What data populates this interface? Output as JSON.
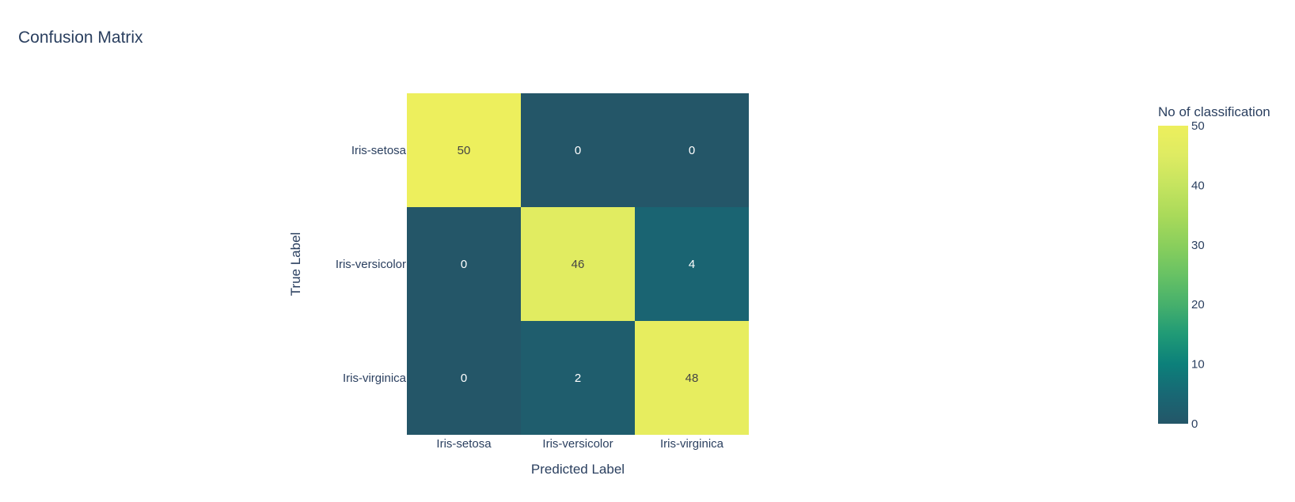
{
  "chart_data": {
    "type": "heatmap",
    "title": "Confusion Matrix",
    "xlabel": "Predicted Label",
    "ylabel": "True Label",
    "x_categories": [
      "Iris-setosa",
      "Iris-versicolor",
      "Iris-virginica"
    ],
    "y_categories": [
      "Iris-setosa",
      "Iris-versicolor",
      "Iris-virginica"
    ],
    "values": [
      [
        50,
        0,
        0
      ],
      [
        0,
        46,
        4
      ],
      [
        0,
        2,
        48
      ]
    ],
    "colorscale": "viridis",
    "colorbar": {
      "title": "No of classification",
      "range": [
        0,
        50
      ],
      "ticks": [
        0,
        10,
        20,
        30,
        40,
        50
      ]
    }
  }
}
